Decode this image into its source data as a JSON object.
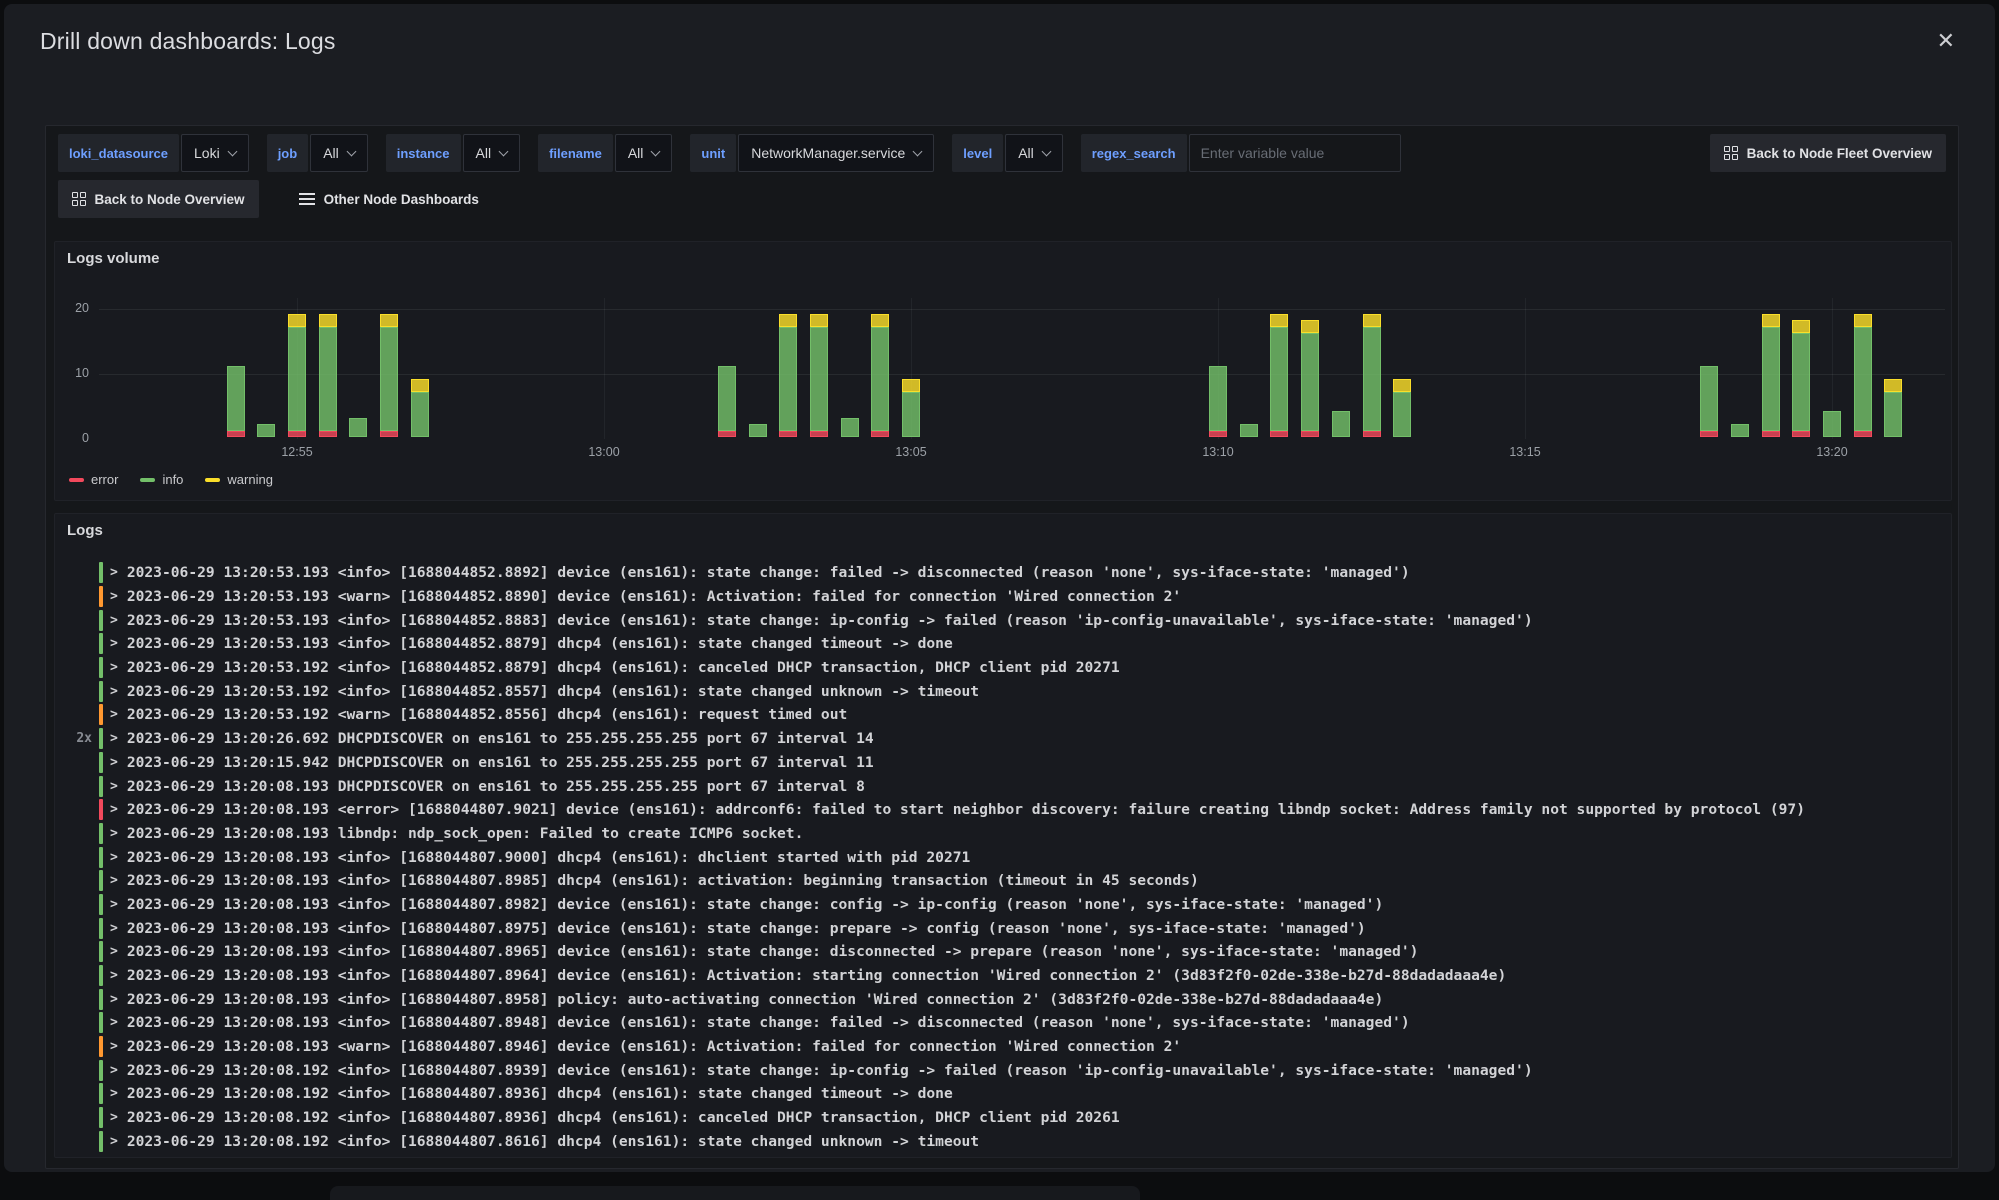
{
  "modal": {
    "title": "Drill down dashboards: Logs",
    "close_icon": "✕"
  },
  "variables": [
    {
      "name": "loki_datasource",
      "label": "loki_datasource",
      "value": "Loki",
      "control": "select"
    },
    {
      "name": "job",
      "label": "job",
      "value": "All",
      "control": "select"
    },
    {
      "name": "instance",
      "label": "instance",
      "value": "All",
      "control": "select"
    },
    {
      "name": "filename",
      "label": "filename",
      "value": "All",
      "control": "select"
    },
    {
      "name": "unit",
      "label": "unit",
      "value": "NetworkManager.service",
      "control": "select"
    },
    {
      "name": "level",
      "label": "level",
      "value": "All",
      "control": "select"
    },
    {
      "name": "regex_search",
      "label": "regex_search",
      "value": "",
      "placeholder": "Enter variable value",
      "control": "input"
    }
  ],
  "toolbar": {
    "back_to_fleet": "Back to Node Fleet Overview",
    "back_to_node": "Back to Node Overview",
    "other_dashboards": "Other Node Dashboards"
  },
  "chart_data": {
    "type": "bar",
    "stacked": true,
    "title": "Logs volume",
    "x_axis": {
      "ticks": [
        "12:55",
        "13:00",
        "13:05",
        "13:10",
        "13:15",
        "13:20"
      ],
      "range": [
        "12:51:47",
        "13:21:50"
      ]
    },
    "y_axis": {
      "ticks": [
        0,
        10,
        20
      ],
      "max": 22
    },
    "legend": [
      "error",
      "info",
      "warning"
    ],
    "legend_position": "bottom-left",
    "series_colors": {
      "error": "#F2495C",
      "info": "#73BF69",
      "warning": "#FADE2A"
    },
    "bars": [
      {
        "time": "12:54:00",
        "error": 1,
        "info": 10,
        "warning": 0
      },
      {
        "time": "12:54:30",
        "error": 0,
        "info": 2,
        "warning": 0
      },
      {
        "time": "12:55:00",
        "error": 1,
        "info": 16,
        "warning": 2
      },
      {
        "time": "12:55:30",
        "error": 1,
        "info": 16,
        "warning": 2
      },
      {
        "time": "12:56:00",
        "error": 0,
        "info": 3,
        "warning": 0
      },
      {
        "time": "12:56:30",
        "error": 1,
        "info": 16,
        "warning": 2
      },
      {
        "time": "12:57:00",
        "error": 0,
        "info": 7,
        "warning": 2
      },
      {
        "time": "13:02:00",
        "error": 1,
        "info": 10,
        "warning": 0
      },
      {
        "time": "13:02:30",
        "error": 0,
        "info": 2,
        "warning": 0
      },
      {
        "time": "13:03:00",
        "error": 1,
        "info": 16,
        "warning": 2
      },
      {
        "time": "13:03:30",
        "error": 1,
        "info": 16,
        "warning": 2
      },
      {
        "time": "13:04:00",
        "error": 0,
        "info": 3,
        "warning": 0
      },
      {
        "time": "13:04:30",
        "error": 1,
        "info": 16,
        "warning": 2
      },
      {
        "time": "13:05:00",
        "error": 0,
        "info": 7,
        "warning": 2
      },
      {
        "time": "13:10:00",
        "error": 1,
        "info": 10,
        "warning": 0
      },
      {
        "time": "13:10:30",
        "error": 0,
        "info": 2,
        "warning": 0
      },
      {
        "time": "13:11:00",
        "error": 1,
        "info": 16,
        "warning": 2
      },
      {
        "time": "13:11:30",
        "error": 1,
        "info": 15,
        "warning": 2
      },
      {
        "time": "13:12:00",
        "error": 0,
        "info": 4,
        "warning": 0
      },
      {
        "time": "13:12:30",
        "error": 1,
        "info": 16,
        "warning": 2
      },
      {
        "time": "13:13:00",
        "error": 0,
        "info": 7,
        "warning": 2
      },
      {
        "time": "13:18:00",
        "error": 1,
        "info": 10,
        "warning": 0
      },
      {
        "time": "13:18:30",
        "error": 0,
        "info": 2,
        "warning": 0
      },
      {
        "time": "13:19:00",
        "error": 1,
        "info": 16,
        "warning": 2
      },
      {
        "time": "13:19:30",
        "error": 1,
        "info": 15,
        "warning": 2
      },
      {
        "time": "13:20:00",
        "error": 0,
        "info": 4,
        "warning": 0
      },
      {
        "time": "13:20:30",
        "error": 1,
        "info": 16,
        "warning": 2
      },
      {
        "time": "13:21:00",
        "error": 0,
        "info": 7,
        "warning": 2
      }
    ]
  },
  "logs": {
    "title": "Logs",
    "level_colors": {
      "info": "#73BF69",
      "warn": "#FF9830",
      "error": "#F2495C"
    },
    "rows": [
      {
        "count": "",
        "level": "info",
        "text": "2023-06-29 13:20:53.193 <info>  [1688044852.8892] device (ens161): state change: failed -> disconnected (reason 'none', sys-iface-state: 'managed')"
      },
      {
        "count": "",
        "level": "warn",
        "text": "2023-06-29 13:20:53.193 <warn>  [1688044852.8890] device (ens161): Activation: failed for connection 'Wired connection 2'"
      },
      {
        "count": "",
        "level": "info",
        "text": "2023-06-29 13:20:53.193 <info>  [1688044852.8883] device (ens161): state change: ip-config -> failed (reason 'ip-config-unavailable', sys-iface-state: 'managed')"
      },
      {
        "count": "",
        "level": "info",
        "text": "2023-06-29 13:20:53.193 <info>  [1688044852.8879] dhcp4 (ens161): state changed timeout -> done"
      },
      {
        "count": "",
        "level": "info",
        "text": "2023-06-29 13:20:53.192 <info>  [1688044852.8879] dhcp4 (ens161): canceled DHCP transaction, DHCP client pid 20271"
      },
      {
        "count": "",
        "level": "info",
        "text": "2023-06-29 13:20:53.192 <info>  [1688044852.8557] dhcp4 (ens161): state changed unknown -> timeout"
      },
      {
        "count": "",
        "level": "warn",
        "text": "2023-06-29 13:20:53.192 <warn>  [1688044852.8556] dhcp4 (ens161): request timed out"
      },
      {
        "count": "2x",
        "level": "info",
        "text": "2023-06-29 13:20:26.692 DHCPDISCOVER on ens161 to 255.255.255.255 port 67 interval 14"
      },
      {
        "count": "",
        "level": "info",
        "text": "2023-06-29 13:20:15.942 DHCPDISCOVER on ens161 to 255.255.255.255 port 67 interval 11"
      },
      {
        "count": "",
        "level": "info",
        "text": "2023-06-29 13:20:08.193 DHCPDISCOVER on ens161 to 255.255.255.255 port 67 interval 8"
      },
      {
        "count": "",
        "level": "error",
        "text": "2023-06-29 13:20:08.193 <error> [1688044807.9021] device (ens161): addrconf6: failed to start neighbor discovery: failure creating libndp socket: Address family not supported by protocol (97)"
      },
      {
        "count": "",
        "level": "info",
        "text": "2023-06-29 13:20:08.193 libndp: ndp_sock_open: Failed to create ICMP6 socket."
      },
      {
        "count": "",
        "level": "info",
        "text": "2023-06-29 13:20:08.193 <info>  [1688044807.9000] dhcp4 (ens161): dhclient started with pid 20271"
      },
      {
        "count": "",
        "level": "info",
        "text": "2023-06-29 13:20:08.193 <info>  [1688044807.8985] dhcp4 (ens161): activation: beginning transaction (timeout in 45 seconds)"
      },
      {
        "count": "",
        "level": "info",
        "text": "2023-06-29 13:20:08.193 <info>  [1688044807.8982] device (ens161): state change: config -> ip-config (reason 'none', sys-iface-state: 'managed')"
      },
      {
        "count": "",
        "level": "info",
        "text": "2023-06-29 13:20:08.193 <info>  [1688044807.8975] device (ens161): state change: prepare -> config (reason 'none', sys-iface-state: 'managed')"
      },
      {
        "count": "",
        "level": "info",
        "text": "2023-06-29 13:20:08.193 <info>  [1688044807.8965] device (ens161): state change: disconnected -> prepare (reason 'none', sys-iface-state: 'managed')"
      },
      {
        "count": "",
        "level": "info",
        "text": "2023-06-29 13:20:08.193 <info>  [1688044807.8964] device (ens161): Activation: starting connection 'Wired connection 2' (3d83f2f0-02de-338e-b27d-88dadadaaa4e)"
      },
      {
        "count": "",
        "level": "info",
        "text": "2023-06-29 13:20:08.193 <info>  [1688044807.8958] policy: auto-activating connection 'Wired connection 2' (3d83f2f0-02de-338e-b27d-88dadadaaa4e)"
      },
      {
        "count": "",
        "level": "info",
        "text": "2023-06-29 13:20:08.193 <info>  [1688044807.8948] device (ens161): state change: failed -> disconnected (reason 'none', sys-iface-state: 'managed')"
      },
      {
        "count": "",
        "level": "warn",
        "text": "2023-06-29 13:20:08.193 <warn>  [1688044807.8946] device (ens161): Activation: failed for connection 'Wired connection 2'"
      },
      {
        "count": "",
        "level": "info",
        "text": "2023-06-29 13:20:08.192 <info>  [1688044807.8939] device (ens161): state change: ip-config -> failed (reason 'ip-config-unavailable', sys-iface-state: 'managed')"
      },
      {
        "count": "",
        "level": "info",
        "text": "2023-06-29 13:20:08.192 <info>  [1688044807.8936] dhcp4 (ens161): state changed timeout -> done"
      },
      {
        "count": "",
        "level": "info",
        "text": "2023-06-29 13:20:08.192 <info>  [1688044807.8936] dhcp4 (ens161): canceled DHCP transaction, DHCP client pid 20261"
      },
      {
        "count": "",
        "level": "info",
        "text": "2023-06-29 13:20:08.192 <info>  [1688044807.8616] dhcp4 (ens161): state changed unknown -> timeout"
      }
    ]
  }
}
